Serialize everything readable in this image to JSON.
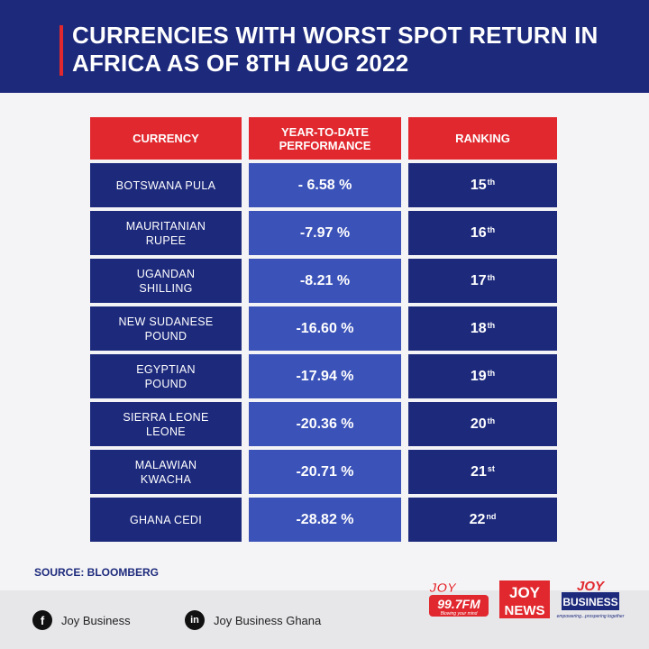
{
  "header": {
    "title": "CURRENCIES WITH WORST SPOT RETURN IN AFRICA AS OF 8TH AUG 2022"
  },
  "table": {
    "columns": [
      "CURRENCY",
      "YEAR-TO-DATE PERFORMANCE",
      "RANKING"
    ],
    "rows": [
      {
        "currency": "BOTSWANA PULA",
        "performance": "- 6.58 %",
        "rank": "15",
        "suffix": "th"
      },
      {
        "currency": "MAURITANIAN RUPEE",
        "performance": "-7.97 %",
        "rank": "16",
        "suffix": "th"
      },
      {
        "currency": "UGANDAN SHILLING",
        "performance": "-8.21 %",
        "rank": "17",
        "suffix": "th"
      },
      {
        "currency": "NEW SUDANESE POUND",
        "performance": "-16.60 %",
        "rank": "18",
        "suffix": "th"
      },
      {
        "currency": "EGYPTIAN POUND",
        "performance": "-17.94 %",
        "rank": "19",
        "suffix": "th"
      },
      {
        "currency": "SIERRA LEONE LEONE",
        "performance": "-20.36 %",
        "rank": "20",
        "suffix": "th"
      },
      {
        "currency": "MALAWIAN KWACHA",
        "performance": "-20.71 %",
        "rank": "21",
        "suffix": "st"
      },
      {
        "currency": "GHANA CEDI",
        "performance": "-28.82 %",
        "rank": "22",
        "suffix": "nd"
      }
    ]
  },
  "source": "SOURCE: BLOOMBERG",
  "footer": {
    "facebook_label": "Joy Business",
    "linkedin_label": "Joy Business Ghana",
    "facebook_icon": "facebook-icon",
    "linkedin_icon": "linkedin-icon"
  },
  "logos": {
    "joy_fm": {
      "brand": "JOY",
      "freq": "99.7FM",
      "tagline": "Blowing your mind"
    },
    "joy_news": {
      "brand": "JOY",
      "name": "NEWS"
    },
    "joy_business": {
      "brand": "JOY",
      "name": "BUSINESS",
      "tagline": "empowering...prospering together"
    }
  },
  "colors": {
    "navy": "#1d2a7c",
    "red": "#e0282e",
    "blue": "#3b52b8"
  }
}
